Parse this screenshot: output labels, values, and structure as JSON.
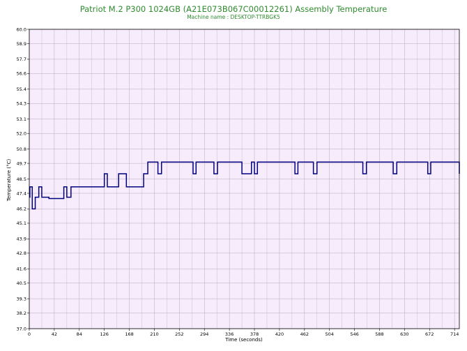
{
  "chart_data": {
    "type": "line",
    "title": "Patriot M.2 P300 1024GB (A21E073B067C00012261) Assembly Temperature",
    "subtitle": "Machine name : DESKTOP-TTRBGK5",
    "xlabel": "Time (seconds)",
    "ylabel": "Temperature (°C)",
    "xlim": [
      0,
      722
    ],
    "ylim": [
      37.0,
      60.0
    ],
    "x_ticks": [
      0,
      42,
      84,
      126,
      168,
      210,
      252,
      294,
      336,
      378,
      420,
      462,
      504,
      546,
      588,
      630,
      672,
      714
    ],
    "y_ticks": [
      "37.0",
      "38.2",
      "39.3",
      "40.5",
      "41.6",
      "42.8",
      "43.9",
      "45.1",
      "46.2",
      "47.4",
      "48.5",
      "49.7",
      "50.8",
      "52.0",
      "53.1",
      "54.3",
      "55.4",
      "56.6",
      "57.7",
      "58.9",
      "60.0"
    ],
    "grid": true,
    "colors": {
      "plot_background": "#f7ecfb",
      "grid": "#b9a8c0",
      "line": "#000080",
      "title": "#2e8b2e"
    },
    "series": [
      {
        "x": [
          0,
          1,
          1,
          5,
          5,
          10,
          10,
          16,
          16,
          21,
          21,
          33,
          33,
          58,
          58,
          63,
          63,
          70,
          70,
          126,
          126,
          131,
          131,
          150,
          150,
          152,
          152,
          163,
          163,
          192,
          192,
          199,
          199,
          216,
          216,
          222,
          222,
          275,
          275,
          280,
          280,
          310,
          310,
          316,
          316,
          357,
          357,
          373,
          373,
          378,
          378,
          383,
          383,
          446,
          446,
          451,
          451,
          477,
          477,
          483,
          483,
          560,
          560,
          566,
          566,
          611,
          611,
          617,
          617,
          669,
          669,
          674,
          674,
          722,
          722
        ],
        "y": [
          47.1,
          47.1,
          47.9,
          47.9,
          46.2,
          46.2,
          47.1,
          47.1,
          47.9,
          47.9,
          47.1,
          47.1,
          47.0,
          47.0,
          47.9,
          47.9,
          47.1,
          47.1,
          47.9,
          47.9,
          48.9,
          48.9,
          47.9,
          47.9,
          48.9,
          48.9,
          48.9,
          48.9,
          47.9,
          47.9,
          48.9,
          48.9,
          49.8,
          49.8,
          48.9,
          48.9,
          49.8,
          49.8,
          48.9,
          48.9,
          49.8,
          49.8,
          48.9,
          48.9,
          49.8,
          49.8,
          48.9,
          48.9,
          49.8,
          49.8,
          48.9,
          48.9,
          49.8,
          49.8,
          48.9,
          48.9,
          49.8,
          49.8,
          48.9,
          48.9,
          49.8,
          49.8,
          48.9,
          48.9,
          49.8,
          49.8,
          48.9,
          48.9,
          49.8,
          49.8,
          48.9,
          48.9,
          49.8,
          49.8,
          48.9
        ]
      }
    ]
  }
}
